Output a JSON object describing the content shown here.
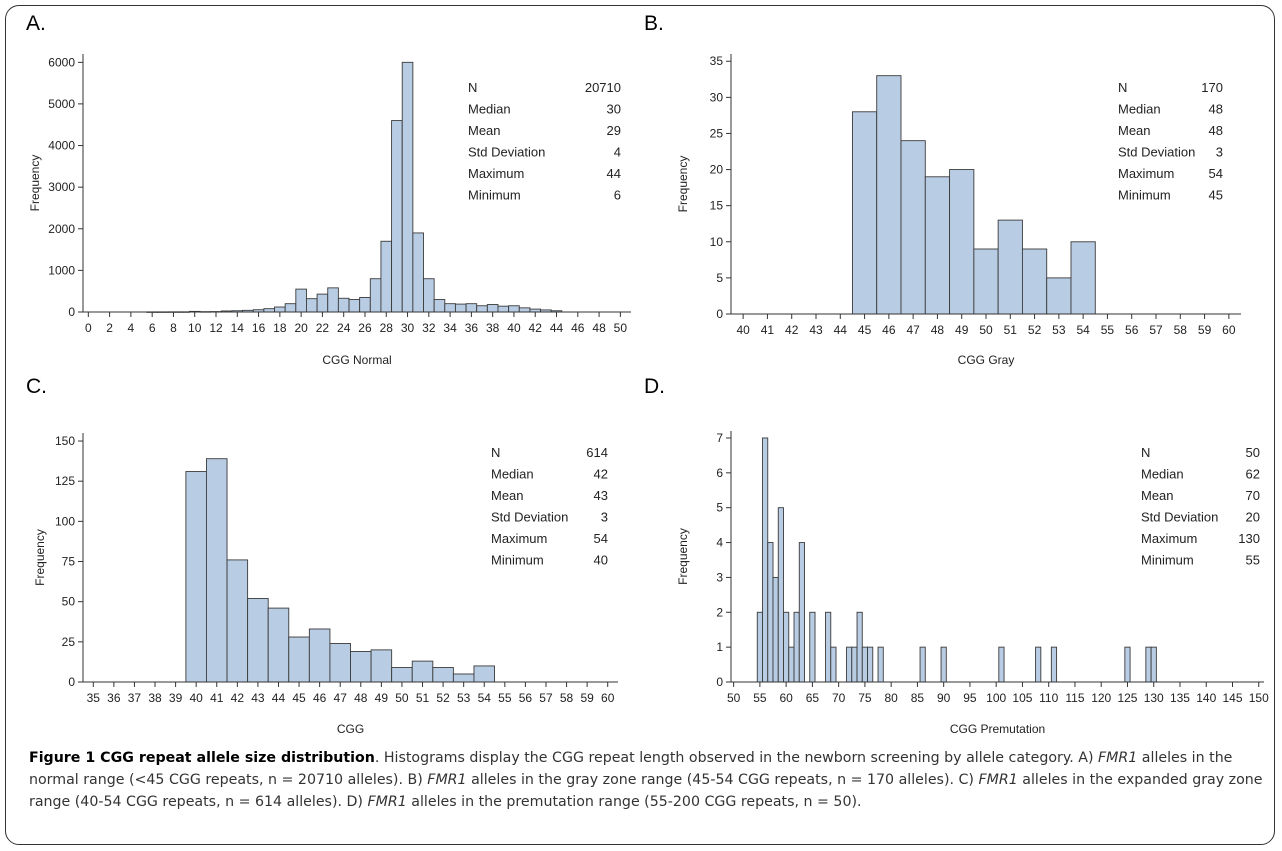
{
  "figure": {
    "caption_title": "Figure 1 CGG repeat allele size distribution",
    "caption_intro": ". Histograms display the CGG repeat length observed in the newborn screening by allele category. A) ",
    "gene": "FMR1",
    "caption_a": " alleles in the normal range (<45 CGG repeats, n = 20710 alleles). B) ",
    "caption_b": " alleles in the gray zone range (45-54 CGG repeats, n = 170 alleles). C) ",
    "caption_c": " alleles in the expanded gray zone range (40-54 CGG repeats, n = 614 alleles). D) ",
    "caption_d": " alleles in the premutation range (55-200 CGG repeats, n = 50)."
  },
  "colors": {
    "bar_fill": "#b8cce4",
    "bar_stroke": "#3b3b3b",
    "axis": "#333333"
  },
  "chart_data": [
    {
      "panel": "A.",
      "type": "bar",
      "xlabel": "CGG Normal",
      "ylabel": "Frequency",
      "bin_width": 1,
      "xlim": [
        -0.5,
        51
      ],
      "ylim": [
        0,
        6200
      ],
      "xticks": [
        0,
        2,
        4,
        6,
        8,
        10,
        12,
        14,
        16,
        18,
        20,
        22,
        24,
        26,
        28,
        30,
        32,
        34,
        36,
        38,
        40,
        42,
        44,
        46,
        48,
        50
      ],
      "yticks": [
        0,
        1000,
        2000,
        3000,
        4000,
        5000,
        6000
      ],
      "x": [
        6,
        7,
        8,
        9,
        10,
        11,
        12,
        13,
        14,
        15,
        16,
        17,
        18,
        19,
        20,
        21,
        22,
        23,
        24,
        25,
        26,
        27,
        28,
        29,
        30,
        31,
        32,
        33,
        34,
        35,
        36,
        37,
        38,
        39,
        40,
        41,
        42,
        43,
        44
      ],
      "values": [
        3,
        3,
        4,
        4,
        15,
        8,
        10,
        25,
        30,
        40,
        55,
        80,
        120,
        200,
        550,
        320,
        430,
        580,
        330,
        300,
        350,
        800,
        1700,
        4600,
        6000,
        1900,
        800,
        300,
        200,
        190,
        200,
        150,
        180,
        140,
        150,
        100,
        70,
        50,
        30
      ],
      "stats": [
        [
          "N",
          "20710"
        ],
        [
          "Median",
          "30"
        ],
        [
          "Mean",
          "29"
        ],
        [
          "Std Deviation",
          "4"
        ],
        [
          "Maximum",
          "44"
        ],
        [
          "Minimum",
          "6"
        ]
      ]
    },
    {
      "panel": "B.",
      "type": "bar",
      "xlabel": "CGG Gray",
      "ylabel": "Frequency",
      "bin_width": 1,
      "xlim": [
        39.5,
        60.5
      ],
      "ylim": [
        0,
        36
      ],
      "xticks": [
        40,
        41,
        42,
        43,
        44,
        45,
        46,
        47,
        48,
        49,
        50,
        51,
        52,
        53,
        54,
        55,
        56,
        57,
        58,
        59,
        60
      ],
      "yticks": [
        0,
        5,
        10,
        15,
        20,
        25,
        30,
        35
      ],
      "x": [
        45,
        46,
        47,
        48,
        49,
        50,
        51,
        52,
        53,
        54
      ],
      "values": [
        28,
        33,
        24,
        19,
        20,
        9,
        13,
        9,
        5,
        10
      ],
      "stats": [
        [
          "N",
          "170"
        ],
        [
          "Median",
          "48"
        ],
        [
          "Mean",
          "48"
        ],
        [
          "Std Deviation",
          "3"
        ],
        [
          "Maximum",
          "54"
        ],
        [
          "Minimum",
          "45"
        ]
      ]
    },
    {
      "panel": "C.",
      "type": "bar",
      "xlabel": "CGG",
      "ylabel": "Frequency",
      "bin_width": 1,
      "xlim": [
        34.5,
        60.5
      ],
      "ylim": [
        0,
        155
      ],
      "xticks": [
        35,
        36,
        37,
        38,
        39,
        40,
        41,
        42,
        43,
        44,
        45,
        46,
        47,
        48,
        49,
        50,
        51,
        52,
        53,
        54,
        55,
        56,
        57,
        58,
        59,
        60
      ],
      "yticks": [
        0,
        25,
        50,
        75,
        100,
        125,
        150
      ],
      "x": [
        40,
        41,
        42,
        43,
        44,
        45,
        46,
        47,
        48,
        49,
        50,
        51,
        52,
        53,
        54
      ],
      "values": [
        131,
        139,
        76,
        52,
        46,
        28,
        33,
        24,
        19,
        20,
        9,
        13,
        9,
        5,
        10
      ],
      "stats": [
        [
          "N",
          "614"
        ],
        [
          "Median",
          "42"
        ],
        [
          "Mean",
          "43"
        ],
        [
          "Std Deviation",
          "3"
        ],
        [
          "Maximum",
          "54"
        ],
        [
          "Minimum",
          "40"
        ]
      ]
    },
    {
      "panel": "D.",
      "type": "bar",
      "xlabel": "CGG Premutation",
      "ylabel": "Frequency",
      "bin_width": 1,
      "xlim": [
        49.5,
        151
      ],
      "ylim": [
        0,
        7.2
      ],
      "xticks": [
        50,
        55,
        60,
        65,
        70,
        75,
        80,
        85,
        90,
        95,
        100,
        105,
        110,
        115,
        120,
        125,
        130,
        135,
        140,
        145,
        150
      ],
      "yticks": [
        0,
        1,
        2,
        3,
        4,
        5,
        6,
        7
      ],
      "x": [
        55,
        56,
        57,
        58,
        59,
        60,
        61,
        62,
        63,
        65,
        68,
        69,
        72,
        73,
        74,
        75,
        76,
        78,
        86,
        90,
        101,
        108,
        111,
        125,
        129,
        130
      ],
      "values": [
        2,
        7,
        4,
        3,
        5,
        2,
        1,
        2,
        4,
        2,
        2,
        1,
        1,
        1,
        2,
        1,
        1,
        1,
        1,
        1,
        1,
        1,
        1,
        1,
        1,
        1
      ],
      "stats": [
        [
          "N",
          "50"
        ],
        [
          "Median",
          "62"
        ],
        [
          "Mean",
          "70"
        ],
        [
          "Std Deviation",
          "20"
        ],
        [
          "Maximum",
          "130"
        ],
        [
          "Minimum",
          "55"
        ]
      ]
    }
  ]
}
